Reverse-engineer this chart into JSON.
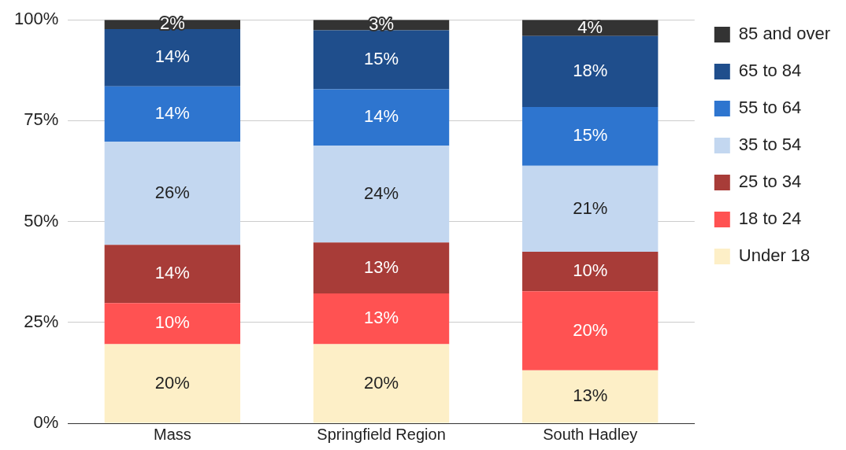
{
  "chart_data": {
    "type": "bar",
    "stacked": true,
    "categories": [
      "Mass",
      "Springfield Region",
      "South Hadley"
    ],
    "series": [
      {
        "name": "Under 18",
        "color": "#fdefc7",
        "values": [
          19.6,
          19.6,
          13.1
        ],
        "value_labels": [
          "20%",
          "20%",
          "13%"
        ]
      },
      {
        "name": "18 to 24",
        "color": "#ff5252",
        "values": [
          10.2,
          12.6,
          19.6
        ],
        "value_labels": [
          "10%",
          "13%",
          "20%"
        ]
      },
      {
        "name": "25 to 34",
        "color": "#a83c38",
        "values": [
          14.4,
          12.6,
          9.8
        ],
        "value_labels": [
          "14%",
          "13%",
          "10%"
        ]
      },
      {
        "name": "35 to 54",
        "color": "#c3d7f0",
        "values": [
          25.6,
          24.0,
          21.3
        ],
        "value_labels": [
          "26%",
          "24%",
          "21%"
        ]
      },
      {
        "name": "55 to 64",
        "color": "#2e75cf",
        "values": [
          13.7,
          14.0,
          14.6
        ],
        "value_labels": [
          "14%",
          "14%",
          "15%"
        ]
      },
      {
        "name": "65 to 84",
        "color": "#1f4e8c",
        "values": [
          14.2,
          14.6,
          17.6
        ],
        "value_labels": [
          "14%",
          "15%",
          "18%"
        ]
      },
      {
        "name": "85 and over",
        "color": "#333333",
        "values": [
          2.3,
          2.6,
          4.0
        ],
        "value_labels": [
          "2%",
          "3%",
          "4%"
        ]
      }
    ],
    "ylim": [
      0,
      100
    ],
    "yticks": [
      {
        "value": 0,
        "label": "0%"
      },
      {
        "value": 25,
        "label": "25%"
      },
      {
        "value": 50,
        "label": "50%"
      },
      {
        "value": 75,
        "label": "75%"
      },
      {
        "value": 100,
        "label": "100%"
      }
    ],
    "grid": "y",
    "legend": "right"
  }
}
